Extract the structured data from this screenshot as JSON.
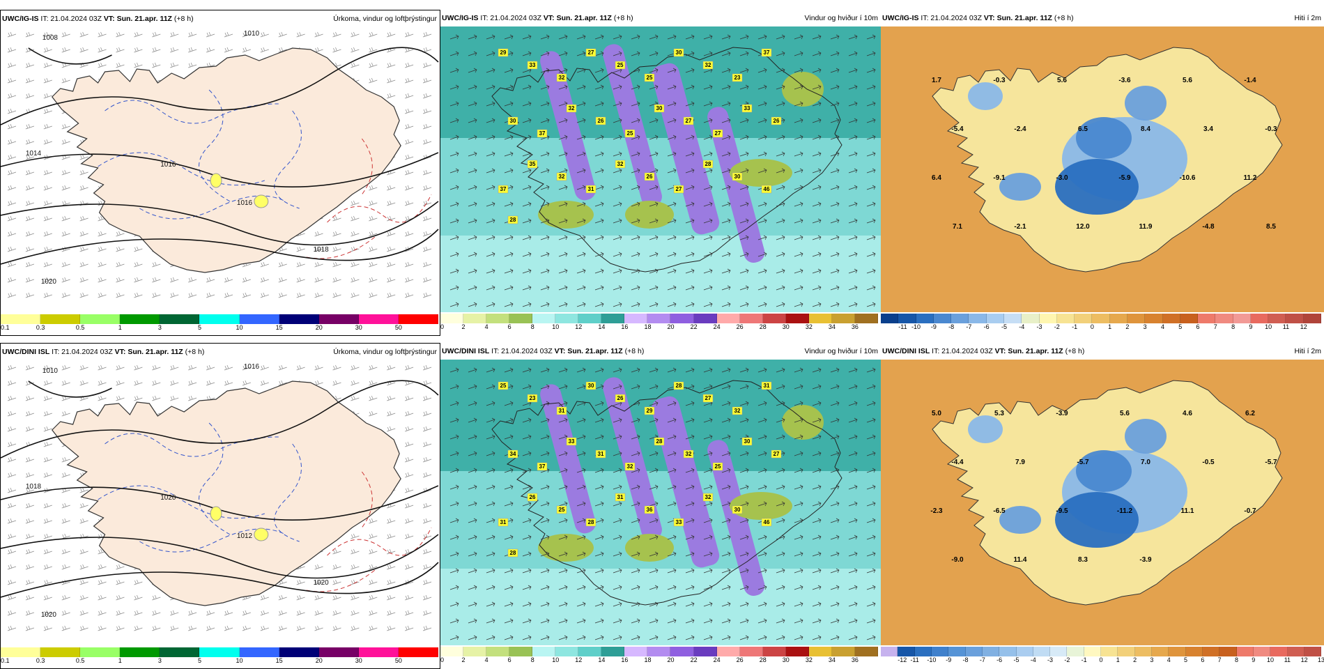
{
  "rows": [
    {
      "panels": [
        {
          "kind": "precip",
          "model_label": "UWC/IG-IS",
          "it_text": "IT: 21.04.2024 03Z",
          "vt_text": "VT: Sun. 21.apr. 11Z",
          "lead_text": "(+8 h)",
          "title": "Úrkoma, vindur og loftþrýstingur",
          "colorbar_colors": [
            "#ffff99",
            "#cccc00",
            "#99ff66",
            "#009900",
            "#006633",
            "#00ffee",
            "#3366ff",
            "#000077",
            "#770066",
            "#ff1199",
            "#ff0000"
          ],
          "colorbar_ticks": [
            "0.1",
            "0.3",
            "0.5",
            "1",
            "3",
            "5",
            "10",
            "15",
            "20",
            "30",
            "50"
          ],
          "isobars": [
            "1008",
            "1010",
            "1014",
            "1016",
            "1016",
            "1018",
            "1020"
          ]
        },
        {
          "kind": "wind",
          "model_label": "UWC/IG-IS",
          "it_text": "IT: 21.04.2024 03Z",
          "vt_text": "VT: Sun. 21.apr. 11Z",
          "lead_text": "(+8 h)",
          "title": "Vindur og hviður í 10m",
          "colorbar_colors": [
            "#ffffdd",
            "#e6f2a6",
            "#c3e07d",
            "#99c255",
            "#b9f5f2",
            "#8ee6e0",
            "#5fcfc9",
            "#2e9e96",
            "#d6b8ff",
            "#b38cf0",
            "#8f5fe0",
            "#6a3cbf",
            "#ffaaaa",
            "#ee7777",
            "#cc4444",
            "#aa1111",
            "#e8c033",
            "#c9a030",
            "#a07020"
          ],
          "colorbar_ticks": [
            "0",
            "2",
            "4",
            "6",
            "8",
            "10",
            "12",
            "14",
            "16",
            "18",
            "20",
            "22",
            "24",
            "26",
            "28",
            "30",
            "32",
            "34",
            "36"
          ],
          "gust_labels": [
            "29",
            "33",
            "32",
            "27",
            "25",
            "25",
            "30",
            "32",
            "23",
            "37",
            "30",
            "37",
            "32",
            "26",
            "25",
            "30",
            "27",
            "27",
            "33",
            "26",
            "37",
            "35",
            "32",
            "31",
            "32",
            "26",
            "27",
            "28",
            "30",
            "46",
            "28"
          ]
        },
        {
          "kind": "temp",
          "model_label": "UWC/IG-IS",
          "it_text": "IT: 21.04.2024 03Z",
          "vt_text": "VT: Sun. 21.apr. 11Z",
          "lead_text": "(+8 h)",
          "title": "Hiti í 2m",
          "colorbar_colors": [
            "#0a3f8c",
            "#1656a8",
            "#2a6fc0",
            "#4a88d0",
            "#6aa0dc",
            "#8ab8e8",
            "#a9cdf0",
            "#c6def5",
            "#e8f0c8",
            "#fff6b0",
            "#f7e393",
            "#f2d07a",
            "#edbd62",
            "#e6a84d",
            "#df943c",
            "#d8822f",
            "#d07026",
            "#c8601e",
            "#ee7a6a",
            "#f08a80",
            "#f29a96",
            "#e86a5f",
            "#d05e52",
            "#c05046",
            "#b0443a"
          ],
          "colorbar_ticks": [
            "-11",
            "-10",
            "-9",
            "-8",
            "-7",
            "-6",
            "-5",
            "-4",
            "-3",
            "-2",
            "-1",
            "0",
            "1",
            "2",
            "3",
            "4",
            "5",
            "6",
            "7",
            "8",
            "9",
            "10",
            "11",
            "12"
          ],
          "temp_labels": [
            "1.7",
            "-0.3",
            "5.6",
            "-3.6",
            "5.6",
            "-1.4",
            "-5.4",
            "-2.4",
            "6.5",
            "8.4",
            "3.4",
            "-0.3",
            "6.4",
            "-9.1",
            "-3.0",
            "-5.9",
            "-10.6",
            "11.2",
            "7.1",
            "-2.1",
            "12.0",
            "11.9",
            "-4.8",
            "8.5"
          ]
        }
      ]
    },
    {
      "panels": [
        {
          "kind": "precip",
          "model_label": "UWC/DINI ISL",
          "it_text": "IT: 21.04.2024 03Z",
          "vt_text": "VT: Sun. 21.apr. 11Z",
          "lead_text": "(+8 h)",
          "title": "Úrkoma, vindur og loftþrýstingur",
          "colorbar_colors": [
            "#ffff99",
            "#cccc00",
            "#99ff66",
            "#009900",
            "#006633",
            "#00ffee",
            "#3366ff",
            "#000077",
            "#770066",
            "#ff1199",
            "#ff0000"
          ],
          "colorbar_ticks": [
            "0.1",
            "0.3",
            "0.5",
            "1",
            "3",
            "5",
            "10",
            "15",
            "20",
            "30",
            "50"
          ],
          "isobars": [
            "1010",
            "1016",
            "1018",
            "1020",
            "1012",
            "1020",
            "1020"
          ]
        },
        {
          "kind": "wind",
          "model_label": "UWC/DINI ISL",
          "it_text": "IT: 21.04.2024 03Z",
          "vt_text": "VT: Sun. 21.apr. 11Z",
          "lead_text": "(+8 h)",
          "title": "Vindur og hviður í 10m",
          "colorbar_colors": [
            "#ffffdd",
            "#e6f2a6",
            "#c3e07d",
            "#99c255",
            "#b9f5f2",
            "#8ee6e0",
            "#5fcfc9",
            "#2e9e96",
            "#d6b8ff",
            "#b38cf0",
            "#8f5fe0",
            "#6a3cbf",
            "#ffaaaa",
            "#ee7777",
            "#cc4444",
            "#aa1111",
            "#e8c033",
            "#c9a030",
            "#a07020"
          ],
          "colorbar_ticks": [
            "0",
            "2",
            "4",
            "6",
            "8",
            "10",
            "12",
            "14",
            "16",
            "18",
            "20",
            "22",
            "24",
            "26",
            "28",
            "30",
            "32",
            "34",
            "36"
          ],
          "gust_labels": [
            "25",
            "23",
            "31",
            "30",
            "26",
            "29",
            "28",
            "27",
            "32",
            "31",
            "34",
            "37",
            "33",
            "31",
            "32",
            "28",
            "32",
            "25",
            "30",
            "27",
            "31",
            "26",
            "25",
            "28",
            "31",
            "36",
            "33",
            "32",
            "30",
            "46",
            "28"
          ]
        },
        {
          "kind": "temp",
          "model_label": "UWC/DINI ISL",
          "it_text": "IT: 21.04.2024 03Z",
          "vt_text": "VT: Sun. 21.apr. 11Z",
          "lead_text": "(+8 h)",
          "title": "Hiti í 2m",
          "colorbar_colors": [
            "#c6b2ee",
            "#1656a8",
            "#2a6fc0",
            "#3f80cc",
            "#5593d6",
            "#6aa0dc",
            "#80b0e2",
            "#95c0ea",
            "#aacdf0",
            "#c0dcf4",
            "#d7eaf7",
            "#e8f4d8",
            "#fff8c0",
            "#f7e393",
            "#f2d07a",
            "#edbd62",
            "#e6a84d",
            "#df943c",
            "#d8822f",
            "#d07026",
            "#c8601e",
            "#ee7a6a",
            "#f08a80",
            "#e86a5f",
            "#d05e52",
            "#c05046"
          ],
          "colorbar_ticks": [
            "-12",
            "-11",
            "-10",
            "-9",
            "-8",
            "-7",
            "-6",
            "-5",
            "-4",
            "-3",
            "-2",
            "-1",
            "0",
            "1",
            "2",
            "3",
            "4",
            "5",
            "6",
            "7",
            "8",
            "9",
            "10",
            "11",
            "12",
            "13"
          ],
          "temp_labels": [
            "5.0",
            "5.3",
            "-3.9",
            "5.6",
            "4.6",
            "6.2",
            "-4.4",
            "7.9",
            "-5.7",
            "7.0",
            "-0.5",
            "-5.7",
            "-2.3",
            "-6.5",
            "-9.5",
            "-11.2",
            "11.1",
            "-0.7",
            "-9.0",
            "11.4",
            "8.3",
            "-3.9"
          ]
        }
      ]
    }
  ]
}
